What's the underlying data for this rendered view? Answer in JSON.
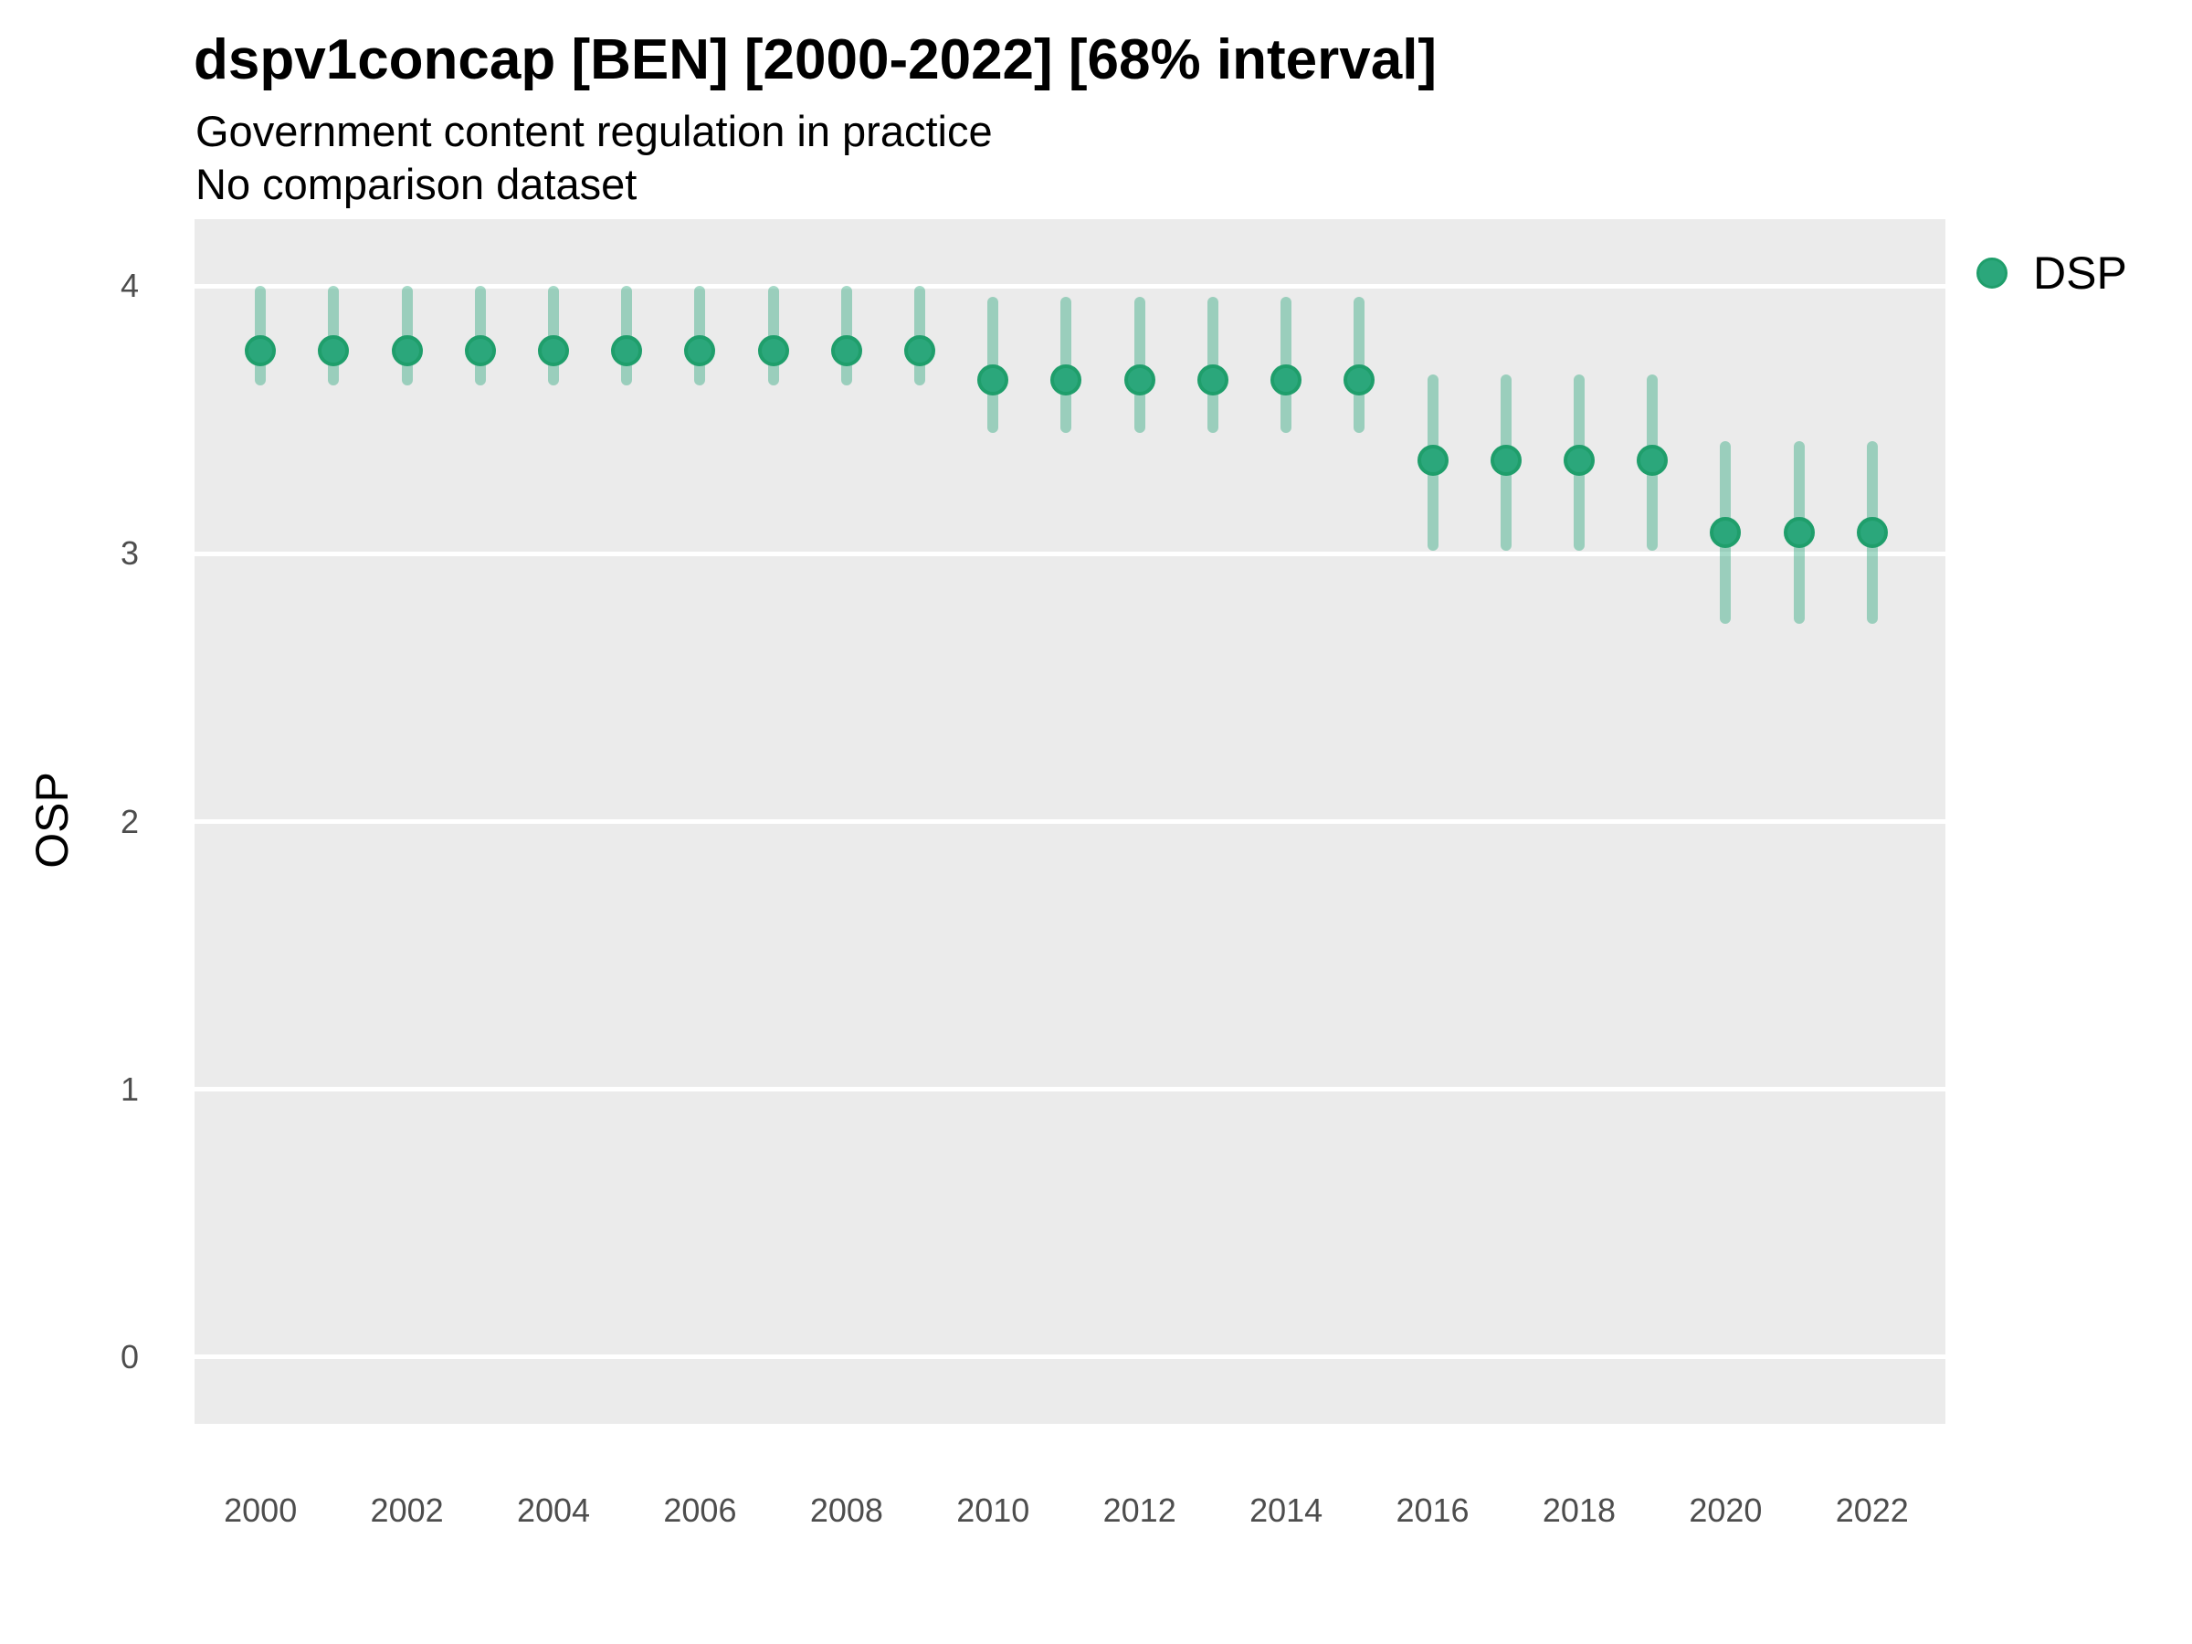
{
  "header": {
    "title": "dspv1concap [BEN] [2000-2022] [68% interval]",
    "subtitle": "Government content regulation in practice",
    "comparison_note": "No comparison dataset"
  },
  "axes": {
    "y_label": "OSP",
    "x_label": ""
  },
  "legend": {
    "label": "DSP"
  },
  "colors": {
    "point_fill": "#2ba77b",
    "point_stroke": "#1f9e6b",
    "interval_bar": "rgba(43,167,123,0.42)",
    "panel_background": "#ebebeb",
    "gridline": "#ffffff",
    "axis_text": "#4d4d4d",
    "text": "#000000"
  },
  "chart_data": {
    "type": "scatter",
    "variant": "pointrange",
    "title": "dspv1concap [BEN] [2000-2022] [68% interval]",
    "subtitle": "Government content regulation in practice",
    "note": "No comparison dataset",
    "interval_label": "68% interval",
    "xlabel": "",
    "ylabel": "OSP",
    "grid": "major-horizontal",
    "legend_position": "right-top",
    "x": [
      2000,
      2001,
      2002,
      2003,
      2004,
      2005,
      2006,
      2007,
      2008,
      2009,
      2010,
      2011,
      2012,
      2013,
      2014,
      2015,
      2016,
      2017,
      2018,
      2019,
      2020,
      2021,
      2022
    ],
    "series": [
      {
        "name": "DSP",
        "values": [
          3.76,
          3.76,
          3.76,
          3.76,
          3.76,
          3.76,
          3.76,
          3.76,
          3.76,
          3.76,
          3.65,
          3.65,
          3.65,
          3.65,
          3.65,
          3.65,
          3.35,
          3.35,
          3.35,
          3.35,
          3.08,
          3.08,
          3.08
        ],
        "lower": [
          3.63,
          3.63,
          3.63,
          3.63,
          3.63,
          3.63,
          3.63,
          3.63,
          3.63,
          3.63,
          3.45,
          3.45,
          3.45,
          3.45,
          3.45,
          3.45,
          3.01,
          3.01,
          3.01,
          3.01,
          2.74,
          2.74,
          2.74
        ],
        "upper": [
          4.0,
          4.0,
          4.0,
          4.0,
          4.0,
          4.0,
          4.0,
          4.0,
          4.0,
          4.0,
          3.96,
          3.96,
          3.96,
          3.96,
          3.96,
          3.96,
          3.67,
          3.67,
          3.67,
          3.67,
          3.42,
          3.42,
          3.42
        ]
      }
    ],
    "xticks": [
      2000,
      2002,
      2004,
      2006,
      2008,
      2010,
      2012,
      2014,
      2016,
      2018,
      2020,
      2022
    ],
    "yticks": [
      0,
      1,
      2,
      3,
      4
    ],
    "xlim": [
      1999.1,
      2023.0
    ],
    "ylim": [
      -0.25,
      4.25
    ]
  }
}
